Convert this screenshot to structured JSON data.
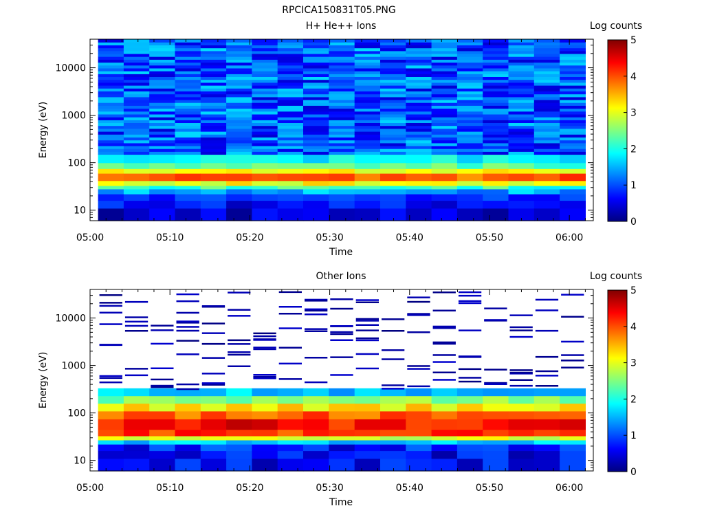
{
  "figure_title": "RPCICA150831T05.PNG",
  "colormap": [
    "#000080",
    "#0000ff",
    "#0080ff",
    "#00ffff",
    "#80ff80",
    "#ffff00",
    "#ff8000",
    "#ff0000",
    "#800000"
  ],
  "chart_data": [
    {
      "type": "heatmap",
      "title": "H+ He++ Ions",
      "xlabel": "Time",
      "ylabel": "Energy (eV)",
      "x_ticks": [
        "05:00",
        "05:10",
        "05:20",
        "05:30",
        "05:40",
        "05:50",
        "06:00"
      ],
      "xlim": [
        "05:00",
        "06:03"
      ],
      "y_ticks": [
        "10",
        "100",
        "1000",
        "10000"
      ],
      "y_scale": "log",
      "ylim": [
        6,
        40000
      ],
      "colorbar_label": "Log counts",
      "colorbar_ticks": [
        "0",
        "1",
        "2",
        "3",
        "4",
        "5"
      ],
      "clim": [
        0,
        5
      ],
      "n_time_bins": 19,
      "time_range": [
        "05:01",
        "06:02"
      ],
      "bands": [
        {
          "emin": 6,
          "emax": 11,
          "level_range": [
            0.1,
            0.8
          ]
        },
        {
          "emin": 11,
          "emax": 16,
          "level_range": [
            0.3,
            1.0
          ]
        },
        {
          "emin": 16,
          "emax": 22,
          "level_range": [
            0.6,
            1.1
          ]
        },
        {
          "emin": 22,
          "emax": 28,
          "level_range": [
            1.1,
            1.8
          ]
        },
        {
          "emin": 28,
          "emax": 33,
          "level_range": [
            1.8,
            2.5
          ]
        },
        {
          "emin": 33,
          "emax": 42,
          "level_range": [
            2.8,
            3.4
          ]
        },
        {
          "emin": 42,
          "emax": 60,
          "level_range": [
            3.6,
            4.2
          ]
        },
        {
          "emin": 60,
          "emax": 75,
          "level_range": [
            2.8,
            3.4
          ]
        },
        {
          "emin": 75,
          "emax": 100,
          "level_range": [
            2.0,
            2.6
          ]
        },
        {
          "emin": 100,
          "emax": 150,
          "level_range": [
            1.5,
            2.1
          ]
        },
        {
          "emin": 150,
          "emax": 40000,
          "level_range": [
            0.4,
            1.7
          ]
        }
      ]
    },
    {
      "type": "heatmap",
      "title": "Other Ions",
      "xlabel": "Time",
      "ylabel": "Energy (eV)",
      "x_ticks": [
        "05:00",
        "05:10",
        "05:20",
        "05:30",
        "05:40",
        "05:50",
        "06:00"
      ],
      "xlim": [
        "05:00",
        "06:03"
      ],
      "y_ticks": [
        "10",
        "100",
        "1000",
        "10000"
      ],
      "y_scale": "log",
      "ylim": [
        6,
        40000
      ],
      "colorbar_label": "Log counts",
      "colorbar_ticks": [
        "0",
        "1",
        "2",
        "3",
        "4",
        "5"
      ],
      "clim": [
        0,
        5
      ],
      "n_time_bins": 19,
      "time_range": [
        "05:01",
        "06:02"
      ],
      "bands": [
        {
          "emin": 6,
          "emax": 11,
          "level_range": [
            0.2,
            1.0
          ]
        },
        {
          "emin": 11,
          "emax": 16,
          "level_range": [
            0.2,
            1.0
          ]
        },
        {
          "emin": 16,
          "emax": 22,
          "level_range": [
            0.3,
            1.2
          ]
        },
        {
          "emin": 22,
          "emax": 27,
          "level_range": [
            1.3,
            2.0
          ]
        },
        {
          "emin": 27,
          "emax": 33,
          "level_range": [
            2.6,
            3.2
          ]
        },
        {
          "emin": 33,
          "emax": 45,
          "level_range": [
            3.8,
            4.4
          ]
        },
        {
          "emin": 45,
          "emax": 75,
          "level_range": [
            4.0,
            4.7
          ]
        },
        {
          "emin": 75,
          "emax": 110,
          "level_range": [
            3.6,
            4.2
          ]
        },
        {
          "emin": 110,
          "emax": 160,
          "level_range": [
            2.9,
            3.5
          ]
        },
        {
          "emin": 160,
          "emax": 230,
          "level_range": [
            2.2,
            2.8
          ]
        },
        {
          "emin": 230,
          "emax": 330,
          "level_range": [
            1.2,
            1.9
          ]
        }
      ],
      "sparse_high_energy": {
        "emin": 330,
        "emax": 40000,
        "level_range": [
          0,
          0.4
        ]
      }
    }
  ]
}
